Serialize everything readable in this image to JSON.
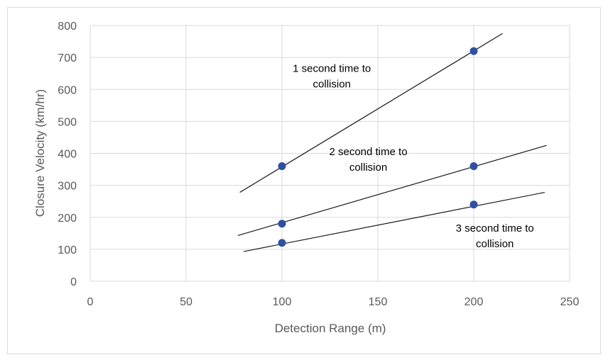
{
  "chart_data": {
    "type": "scatter",
    "title": "",
    "xlabel": "Detection Range (m)",
    "ylabel": "Closure Velocity (km/hr)",
    "xlim": [
      0,
      250
    ],
    "ylim": [
      0,
      800
    ],
    "x_ticks": [
      "0",
      "50",
      "100",
      "150",
      "200",
      "250"
    ],
    "y_ticks": [
      "0",
      "100",
      "200",
      "300",
      "400",
      "500",
      "600",
      "700",
      "800"
    ],
    "grid": true,
    "series": [
      {
        "name": "1 second time to collision",
        "points": [
          {
            "x": 100,
            "y": 360
          },
          {
            "x": 200,
            "y": 720
          }
        ],
        "trendline": [
          {
            "x": 78,
            "y": 278
          },
          {
            "x": 215,
            "y": 775
          }
        ],
        "label_lines": [
          "1 second time to",
          "collision"
        ]
      },
      {
        "name": "2 second time to collision",
        "points": [
          {
            "x": 100,
            "y": 180
          },
          {
            "x": 200,
            "y": 360
          }
        ],
        "trendline": [
          {
            "x": 77,
            "y": 143
          },
          {
            "x": 238,
            "y": 425
          }
        ],
        "label_lines": [
          "2 second time to",
          "collision"
        ]
      },
      {
        "name": "3 second time to collision",
        "points": [
          {
            "x": 100,
            "y": 120
          },
          {
            "x": 200,
            "y": 240
          }
        ],
        "trendline": [
          {
            "x": 80,
            "y": 93
          },
          {
            "x": 237,
            "y": 278
          }
        ],
        "label_lines": [
          "3 second time to",
          "collision"
        ]
      }
    ],
    "colors": {
      "point": "#2e4fa3",
      "line": "#1a1a1a",
      "grid": "#d9d9d9",
      "text": "#595959"
    }
  }
}
